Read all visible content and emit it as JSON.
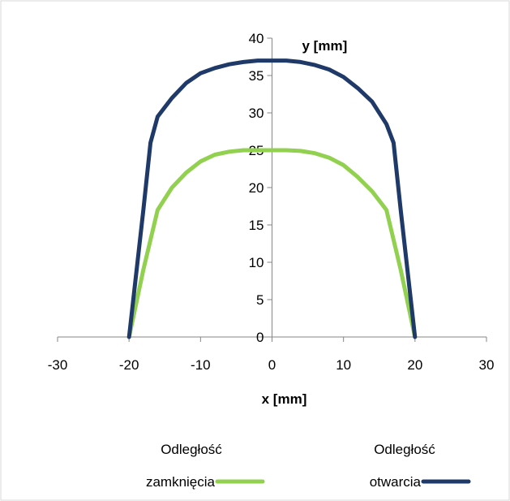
{
  "chart_data": {
    "type": "line",
    "title": "",
    "xlabel": "x [mm]",
    "ylabel": "y [mm]",
    "xlim": [
      -30,
      30
    ],
    "ylim": [
      0,
      40
    ],
    "x_ticks": [
      "-30",
      "-20",
      "-10",
      "0",
      "10",
      "20",
      "30"
    ],
    "y_ticks": [
      "0",
      "5",
      "10",
      "15",
      "20",
      "25",
      "30",
      "35",
      "40"
    ],
    "grid": false,
    "legend_position": "bottom",
    "series": [
      {
        "name": "Odległość zamknięcia",
        "legend_line1": "Odległość",
        "legend_line2": "zamknięcia",
        "color": "#92d050",
        "points": [
          [
            -20,
            0
          ],
          [
            -18,
            9
          ],
          [
            -16,
            17
          ],
          [
            -14,
            20
          ],
          [
            -12,
            22
          ],
          [
            -10,
            23.5
          ],
          [
            -8,
            24.4
          ],
          [
            -6,
            24.8
          ],
          [
            -4,
            25
          ],
          [
            -2,
            25
          ],
          [
            0,
            25
          ],
          [
            2,
            25
          ],
          [
            4,
            24.9
          ],
          [
            6,
            24.6
          ],
          [
            8,
            24
          ],
          [
            10,
            23
          ],
          [
            12,
            21.4
          ],
          [
            14,
            19.5
          ],
          [
            16,
            17
          ],
          [
            18,
            9
          ],
          [
            20,
            0
          ]
        ]
      },
      {
        "name": "Odległość otwarcia",
        "legend_line1": "Odległość",
        "legend_line2": "otwarcia",
        "color": "#1f3a68",
        "points": [
          [
            -20,
            0
          ],
          [
            -18,
            17
          ],
          [
            -17,
            26
          ],
          [
            -16,
            29.5
          ],
          [
            -14,
            32
          ],
          [
            -12,
            34
          ],
          [
            -10,
            35.3
          ],
          [
            -8,
            36
          ],
          [
            -6,
            36.5
          ],
          [
            -4,
            36.8
          ],
          [
            -2,
            37
          ],
          [
            0,
            37
          ],
          [
            2,
            37
          ],
          [
            4,
            36.8
          ],
          [
            6,
            36.4
          ],
          [
            8,
            35.8
          ],
          [
            10,
            34.8
          ],
          [
            12,
            33.3
          ],
          [
            14,
            31.5
          ],
          [
            16,
            28.5
          ],
          [
            17,
            26
          ],
          [
            18,
            17
          ],
          [
            20,
            0
          ]
        ]
      }
    ]
  }
}
